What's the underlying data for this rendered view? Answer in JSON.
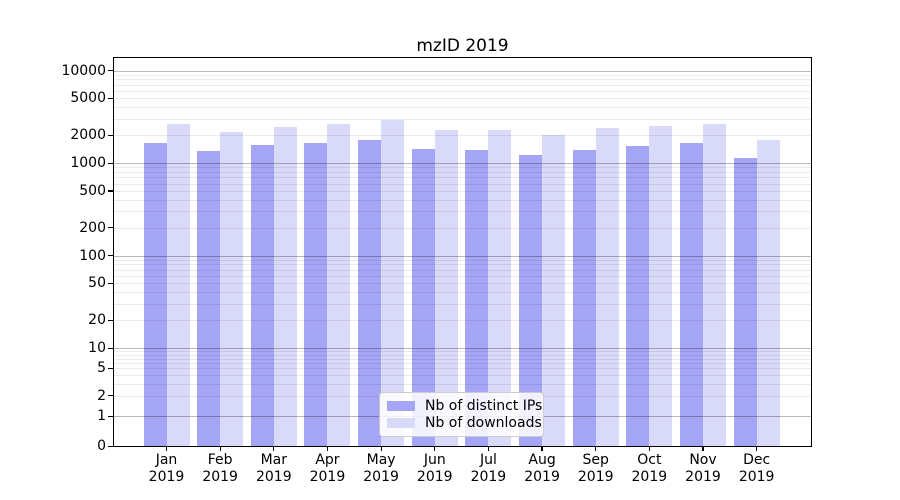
{
  "chart_data": {
    "type": "bar",
    "title": "mzID 2019",
    "categories": [
      "Jan 2019",
      "Feb 2019",
      "Mar 2019",
      "Apr 2019",
      "May 2019",
      "Jun 2019",
      "Jul 2019",
      "Aug 2019",
      "Sep 2019",
      "Oct 2019",
      "Nov 2019",
      "Dec 2019"
    ],
    "series": [
      {
        "name": "Nb of distinct IPs",
        "color": "#a5a5f6",
        "values": [
          1630,
          1360,
          1580,
          1650,
          1790,
          1400,
          1380,
          1210,
          1380,
          1520,
          1630,
          1140
        ]
      },
      {
        "name": "Nb of downloads",
        "color": "#d9d9f9",
        "values": [
          2620,
          2190,
          2440,
          2640,
          2940,
          2250,
          2290,
          2030,
          2400,
          2520,
          2660,
          1780
        ]
      }
    ],
    "yticks": [
      0,
      1,
      2,
      5,
      10,
      20,
      50,
      100,
      200,
      500,
      1000,
      2000,
      5000,
      10000
    ],
    "ylim": [
      0,
      14000
    ],
    "yscale": "symlog",
    "xlabel": "",
    "ylabel": "",
    "grid": "horizontal major+minor",
    "legend_position": "bottom-center"
  },
  "colors": {
    "background": "#ffffff",
    "spine": "#000000",
    "text": "#000000",
    "major_grid": "rgba(0,0,0,0.28)",
    "minor_grid": "rgba(0,0,0,0.08)",
    "legend_border": "#cccccc"
  }
}
